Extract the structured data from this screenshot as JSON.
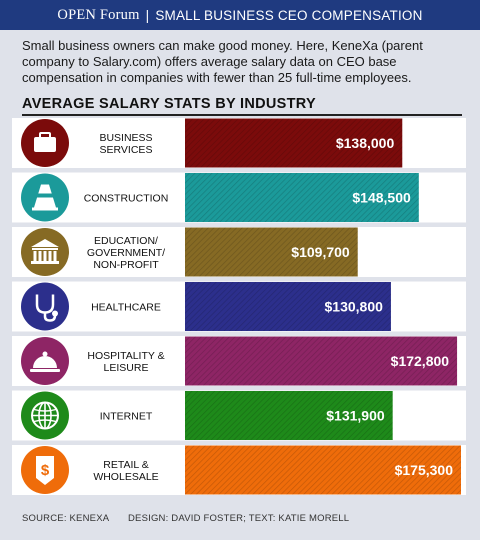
{
  "header": {
    "brand": "OPEN Forum",
    "separator": "|",
    "title": "SMALL BUSINESS CEO COMPENSATION"
  },
  "intro": "Small business owners can make good money. Here, KeneXa (parent company to Salary.com) offers average salary data on CEO base compensation in companies with fewer than 25 full-time employees.",
  "footer": {
    "source": "SOURCE: KENEXA",
    "credits": "DESIGN: DAVID FOSTER; TEXT:  KATIE MORELL"
  },
  "chart_data": {
    "type": "bar",
    "orientation": "horizontal",
    "title": "AVERAGE SALARY STATS BY INDUSTRY",
    "categories": [
      [
        "BUSINESS",
        "SERVICES"
      ],
      [
        "CONSTRUCTION"
      ],
      [
        "EDUCATION/",
        "GOVERNMENT/",
        "NON-PROFIT"
      ],
      [
        "HEALTHCARE"
      ],
      [
        "HOSPITALITY &",
        "LEISURE"
      ],
      [
        "INTERNET"
      ],
      [
        "RETAIL &",
        "WHOLESALE"
      ]
    ],
    "values": [
      138000,
      148500,
      109700,
      130800,
      172800,
      131900,
      175300
    ],
    "value_labels": [
      "$138,000",
      "$148,500",
      "$109,700",
      "$130,800",
      "$172,800",
      "$131,900",
      "$175,300"
    ],
    "icons": [
      "briefcase-icon",
      "traffic-cone-icon",
      "bank-building-icon",
      "stethoscope-icon",
      "cloche-icon",
      "globe-icon",
      "price-tag-icon"
    ],
    "colors": [
      "#7b0b0b",
      "#1b9a9a",
      "#866a24",
      "#2c2f8c",
      "#8e2565",
      "#1e8a1a",
      "#ef6c0a"
    ],
    "xlim": [
      0,
      175300
    ],
    "grid": false,
    "legend": "none"
  }
}
